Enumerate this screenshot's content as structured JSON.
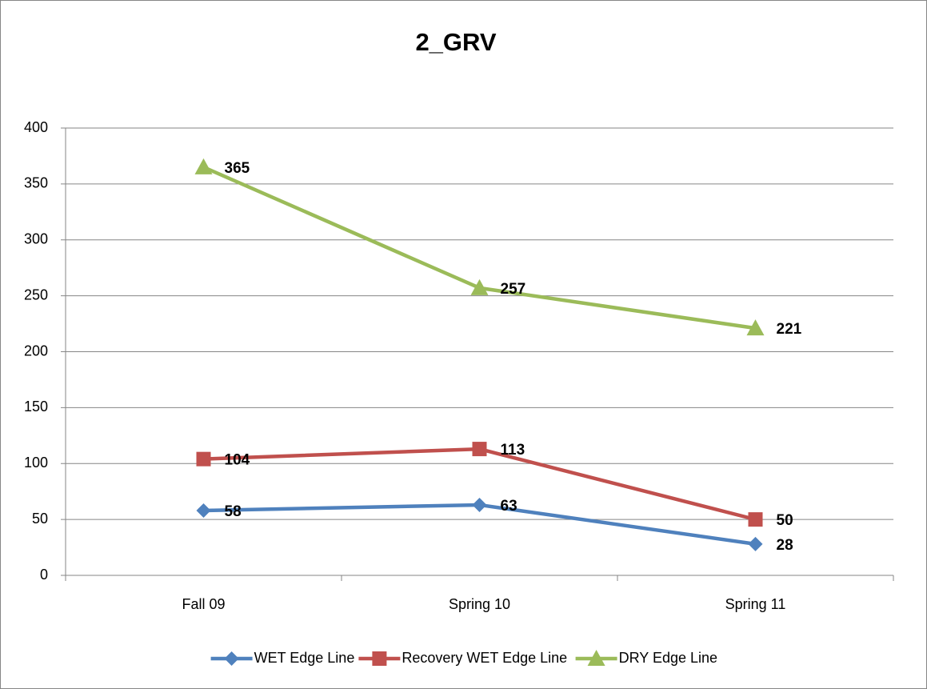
{
  "chart_data": {
    "type": "line",
    "title": "2_GRV",
    "categories": [
      "Fall 09",
      "Spring 10",
      "Spring 11"
    ],
    "series": [
      {
        "name": "WET Edge Line",
        "color": "#4f81bd",
        "marker": "diamond",
        "values": [
          58,
          63,
          28
        ]
      },
      {
        "name": "Recovery WET Edge Line",
        "color": "#c0504d",
        "marker": "square",
        "values": [
          104,
          113,
          50
        ]
      },
      {
        "name": "DRY Edge Line",
        "color": "#9bbb59",
        "marker": "triangle",
        "values": [
          365,
          257,
          221
        ]
      }
    ],
    "ylim": [
      0,
      400
    ],
    "yticks": [
      0,
      50,
      100,
      150,
      200,
      250,
      300,
      350,
      400
    ],
    "grid": true,
    "legend": "bottom"
  }
}
